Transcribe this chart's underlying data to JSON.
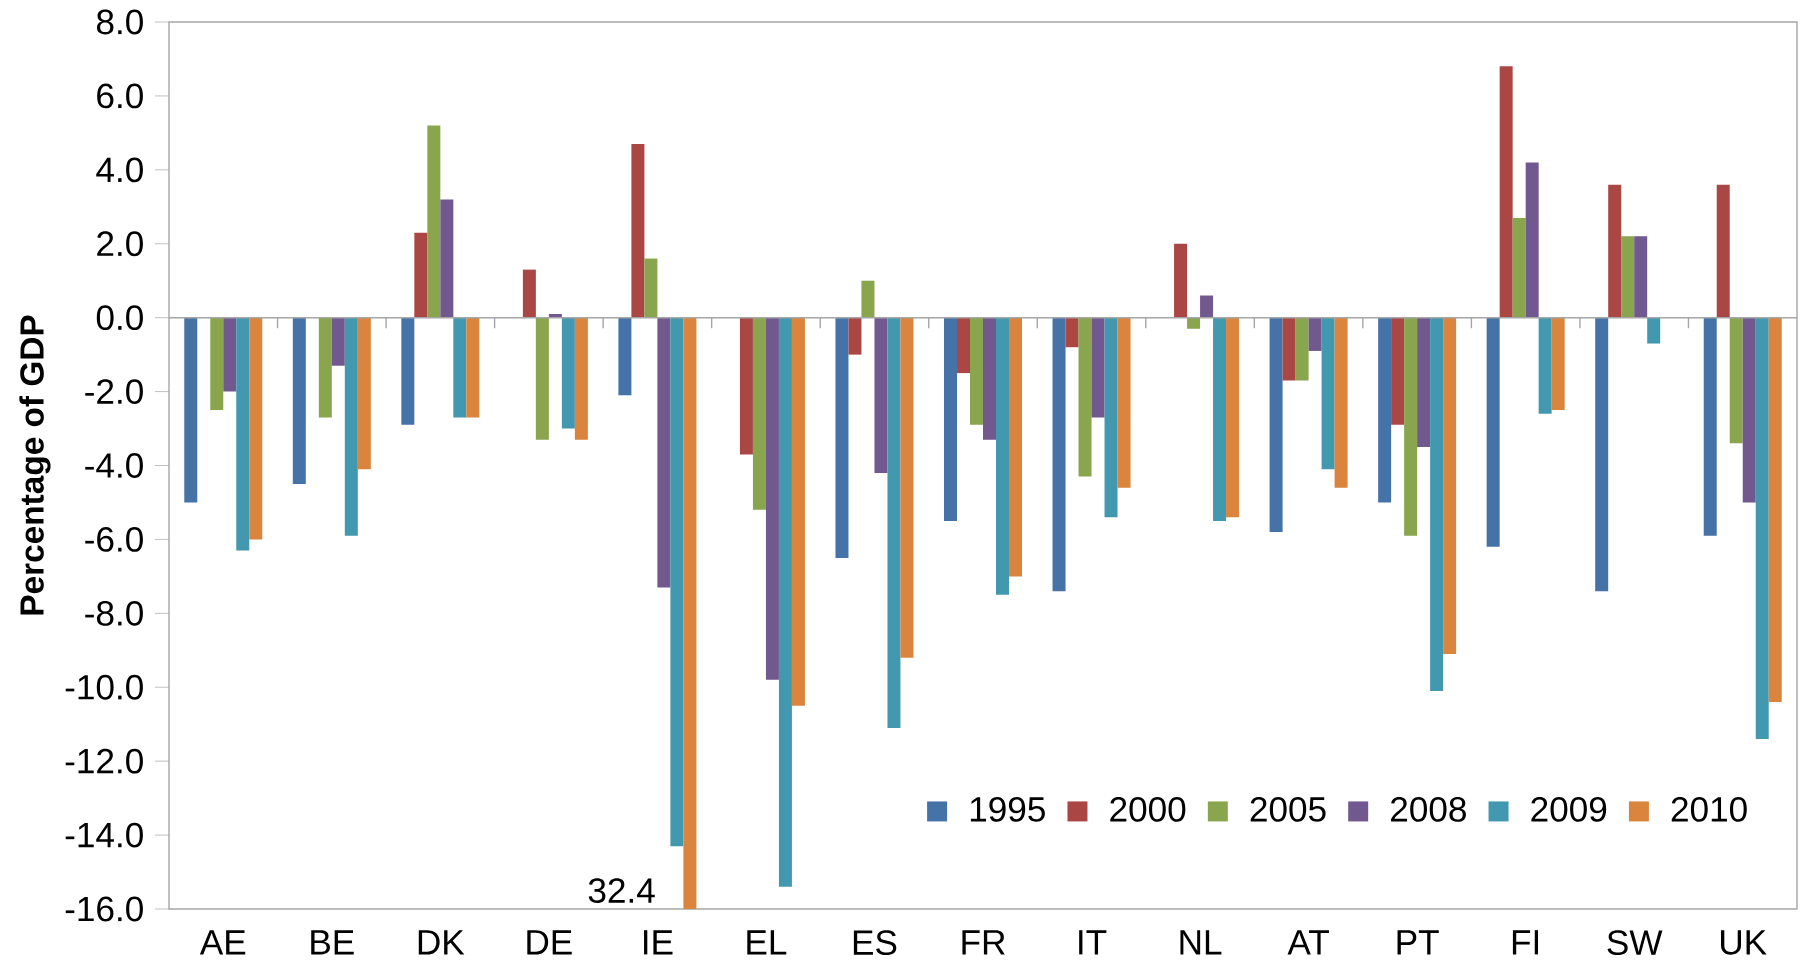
{
  "chart_data": {
    "type": "bar",
    "ylabel": "Percentage of GDP",
    "categories": [
      "AE",
      "BE",
      "DK",
      "DE",
      "IE",
      "EL",
      "ES",
      "FR",
      "IT",
      "NL",
      "AT",
      "PT",
      "FI",
      "SW",
      "UK"
    ],
    "series": [
      {
        "name": "1995",
        "color": "#4572a7",
        "values": [
          -5.0,
          -4.5,
          -2.9,
          null,
          -2.1,
          null,
          -6.5,
          -5.5,
          -7.4,
          null,
          -5.8,
          -5.0,
          -6.2,
          -7.4,
          -5.9
        ]
      },
      {
        "name": "2000",
        "color": "#aa4643",
        "values": [
          null,
          null,
          2.3,
          1.3,
          4.7,
          -3.7,
          -1.0,
          -1.5,
          -0.8,
          2.0,
          -1.7,
          -2.9,
          6.8,
          3.6,
          3.6
        ]
      },
      {
        "name": "2005",
        "color": "#89a54e",
        "values": [
          -2.5,
          -2.7,
          5.2,
          -3.3,
          1.6,
          -5.2,
          1.0,
          -2.9,
          -4.3,
          -0.3,
          -1.7,
          -5.9,
          2.7,
          2.2,
          -3.4
        ]
      },
      {
        "name": "2008",
        "color": "#71588f",
        "values": [
          -2.0,
          -1.3,
          3.2,
          0.1,
          -7.3,
          -9.8,
          -4.2,
          -3.3,
          -2.7,
          0.6,
          -0.9,
          -3.5,
          4.2,
          2.2,
          -5.0
        ]
      },
      {
        "name": "2009",
        "color": "#4198af",
        "values": [
          -6.3,
          -5.9,
          -2.7,
          -3.0,
          -14.3,
          -15.4,
          -11.1,
          -7.5,
          -5.4,
          -5.5,
          -4.1,
          -10.1,
          -2.6,
          -0.7,
          -11.4
        ]
      },
      {
        "name": "2010",
        "color": "#db843d",
        "values": [
          -6.0,
          -4.1,
          -2.7,
          -3.3,
          -16.0,
          -10.5,
          -9.2,
          -7.0,
          -4.6,
          -5.4,
          -4.6,
          -9.1,
          -2.5,
          null,
          -10.4
        ]
      }
    ],
    "ylim": [
      -16,
      8
    ],
    "yticks": [
      {
        "value": 8,
        "label": "8.0"
      },
      {
        "value": 6,
        "label": "6.0"
      },
      {
        "value": 4,
        "label": "4.0"
      },
      {
        "value": 2,
        "label": "2.0"
      },
      {
        "value": 0,
        "label": "0.0"
      },
      {
        "value": -2,
        "label": "-2.0"
      },
      {
        "value": -4,
        "label": "-4.0"
      },
      {
        "value": -6,
        "label": "-6.0"
      },
      {
        "value": -8,
        "label": "-8.0"
      },
      {
        "value": -10,
        "label": "-10.0"
      },
      {
        "value": -12,
        "label": "-12.0"
      },
      {
        "value": -14,
        "label": "-14.0"
      },
      {
        "value": -16,
        "label": "-16.0"
      }
    ],
    "annotations": [
      "32.4"
    ],
    "legend": "bottom right"
  }
}
